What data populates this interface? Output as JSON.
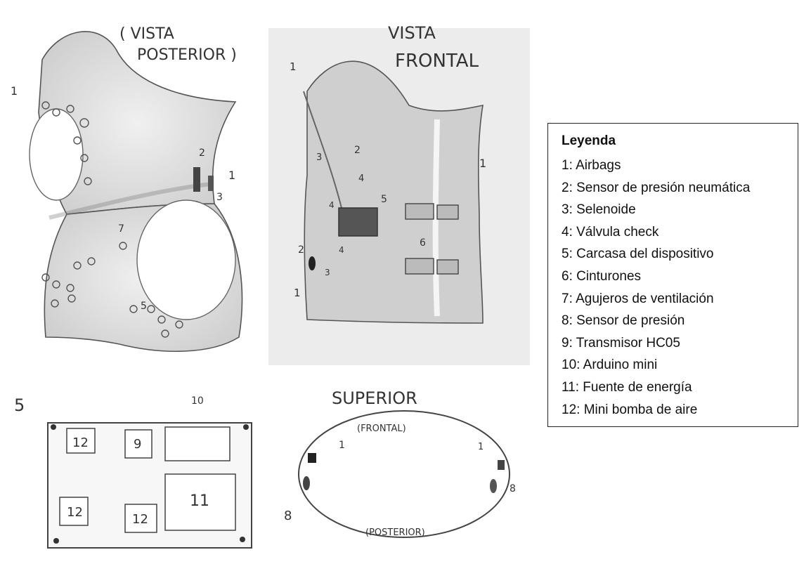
{
  "posterior": {
    "title_line1": "( VISTA",
    "title_line2": "POSTERIOR )",
    "labels": [
      "1",
      "2",
      "1",
      "3",
      "7",
      "5"
    ]
  },
  "frontal": {
    "title_line1": "VISTA",
    "title_line2": "FRONTAL",
    "labels": [
      "1",
      "3",
      "2",
      "4",
      "5",
      "4",
      "2",
      "4",
      "3",
      "1",
      "6",
      "1"
    ]
  },
  "device": {
    "section_number": "5",
    "labels": [
      "10",
      "12",
      "9",
      "12",
      "12",
      "11"
    ]
  },
  "superior": {
    "title": "SUPERIOR",
    "front_label": "(FRONTAL)",
    "back_label": "(POSTERIOR)",
    "labels": [
      "1",
      "8",
      "1",
      "8"
    ]
  },
  "legend": {
    "title": "Leyenda",
    "items": [
      "1: Airbags",
      "2: Sensor de presión neumática",
      "3: Selenoide",
      "4: Válvula check",
      "5: Carcasa del dispositivo",
      "6: Cinturones",
      "7: Agujeros de ventilación",
      "8: Sensor de presión",
      "9: Transmisor HC05",
      "10: Arduino mini",
      "11: Fuente de energía",
      "12: Mini bomba de aire"
    ]
  }
}
